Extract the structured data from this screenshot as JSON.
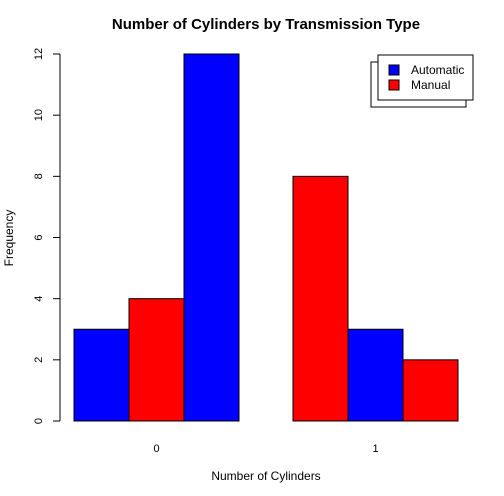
{
  "chart_data": {
    "type": "bar",
    "title": "Number of Cylinders by Transmission Type",
    "xlabel": "Number of Cylinders",
    "ylabel": "Frequency",
    "ylim": [
      0,
      12
    ],
    "yticks": [
      0,
      2,
      4,
      6,
      8,
      10,
      12
    ],
    "groups": [
      "0",
      "1"
    ],
    "group_bar_colors": [
      [
        "#0000ff",
        "#ff0000",
        "#0000ff"
      ],
      [
        "#ff0000",
        "#0000ff",
        "#ff0000"
      ]
    ],
    "group_values": [
      [
        3,
        4,
        12
      ],
      [
        8,
        3,
        2
      ]
    ],
    "series": [
      {
        "name": "Automatic",
        "color": "#0000ff"
      },
      {
        "name": "Manual",
        "color": "#ff0000"
      }
    ],
    "legend_position": "top-right",
    "grid": false
  }
}
